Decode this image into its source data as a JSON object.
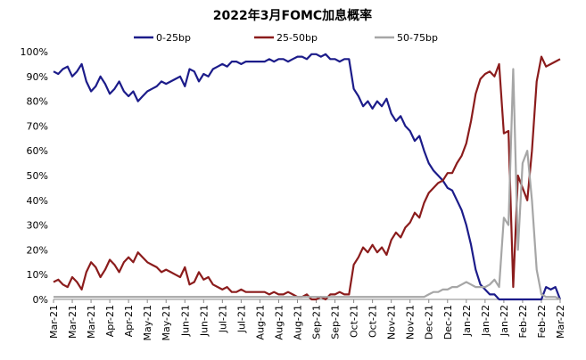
{
  "chart_data": {
    "type": "line",
    "title": "2022年3月FOMC加息概率",
    "categories": [
      "Mar-21",
      null,
      null,
      null,
      "Mar-21",
      null,
      null,
      null,
      "Mar-21",
      null,
      null,
      null,
      "Apr-21",
      null,
      null,
      null,
      "Apr-21",
      null,
      null,
      null,
      "May-21",
      null,
      null,
      null,
      "May-21",
      null,
      null,
      null,
      "Jun-21",
      null,
      null,
      null,
      "Jun-21",
      null,
      null,
      null,
      "Jul-21",
      null,
      null,
      null,
      "Jul-21",
      null,
      null,
      null,
      "Aug-21",
      null,
      null,
      null,
      "Aug-21",
      null,
      null,
      null,
      "Aug-21",
      null,
      null,
      null,
      "Sep-21",
      null,
      null,
      null,
      "Sep-21",
      null,
      null,
      null,
      "Oct-21",
      null,
      null,
      null,
      "Oct-21",
      null,
      null,
      null,
      "Nov-21",
      null,
      null,
      null,
      "Nov-21",
      null,
      null,
      null,
      "Dec-21",
      null,
      null,
      null,
      "Dec-21",
      null,
      null,
      null,
      "Jan-22",
      null,
      null,
      null,
      "Jan-22",
      null,
      null,
      null,
      "Jan-22",
      null,
      null,
      null,
      "Feb-22",
      null,
      null,
      null,
      "Feb-22",
      null,
      null,
      null,
      "Mar-22"
    ],
    "series": [
      {
        "name": "0-25bp",
        "color": "#1c1c8a",
        "values": [
          92,
          91,
          93,
          94,
          90,
          92,
          95,
          88,
          84,
          86,
          90,
          87,
          83,
          85,
          88,
          84,
          82,
          84,
          80,
          82,
          84,
          85,
          86,
          88,
          87,
          88,
          89,
          90,
          86,
          93,
          92,
          88,
          91,
          90,
          93,
          94,
          95,
          94,
          96,
          96,
          95,
          96,
          96,
          96,
          96,
          96,
          97,
          96,
          97,
          97,
          96,
          97,
          98,
          98,
          97,
          99,
          99,
          98,
          99,
          97,
          97,
          96,
          97,
          97,
          85,
          82,
          78,
          80,
          77,
          80,
          78,
          81,
          75,
          72,
          74,
          70,
          68,
          64,
          66,
          60,
          55,
          52,
          50,
          48,
          45,
          44,
          40,
          36,
          30,
          22,
          12,
          6,
          4,
          2,
          2,
          0,
          0,
          0,
          0,
          0,
          0,
          0,
          0,
          0,
          0,
          5,
          4,
          5,
          0
        ]
      },
      {
        "name": "25-50bp",
        "color": "#8b1c1c",
        "values": [
          7,
          8,
          6,
          5,
          9,
          7,
          4,
          11,
          15,
          13,
          9,
          12,
          16,
          14,
          11,
          15,
          17,
          15,
          19,
          17,
          15,
          14,
          13,
          11,
          12,
          11,
          10,
          9,
          13,
          6,
          7,
          11,
          8,
          9,
          6,
          5,
          4,
          5,
          3,
          3,
          4,
          3,
          3,
          3,
          3,
          3,
          2,
          3,
          2,
          2,
          3,
          2,
          1,
          1,
          2,
          0,
          0,
          1,
          0,
          2,
          2,
          3,
          2,
          2,
          14,
          17,
          21,
          19,
          22,
          19,
          21,
          18,
          24,
          27,
          25,
          29,
          31,
          35,
          33,
          39,
          43,
          45,
          47,
          48,
          51,
          51,
          55,
          58,
          63,
          72,
          83,
          89,
          91,
          92,
          90,
          95,
          67,
          68,
          5,
          50,
          45,
          40,
          60,
          88,
          98,
          94,
          95,
          96,
          97
        ]
      },
      {
        "name": "50-75bp",
        "color": "#a6a6a6",
        "values": [
          1,
          1,
          1,
          1,
          1,
          1,
          1,
          1,
          1,
          1,
          1,
          1,
          1,
          1,
          1,
          1,
          1,
          1,
          1,
          1,
          1,
          1,
          1,
          1,
          1,
          1,
          1,
          1,
          1,
          1,
          1,
          1,
          1,
          1,
          1,
          1,
          1,
          1,
          1,
          1,
          1,
          1,
          1,
          1,
          1,
          1,
          1,
          1,
          1,
          1,
          1,
          1,
          1,
          1,
          1,
          1,
          1,
          1,
          1,
          1,
          1,
          1,
          1,
          1,
          1,
          1,
          1,
          1,
          1,
          1,
          1,
          1,
          1,
          1,
          1,
          1,
          1,
          1,
          1,
          1,
          2,
          3,
          3,
          4,
          4,
          5,
          5,
          6,
          7,
          6,
          5,
          5,
          5,
          6,
          8,
          5,
          33,
          30,
          93,
          20,
          55,
          60,
          40,
          12,
          2,
          1,
          1,
          1,
          0
        ]
      }
    ],
    "ylim": [
      0,
      100
    ],
    "yticks": [
      {
        "value": 0,
        "label": "0%"
      },
      {
        "value": 10,
        "label": "10%"
      },
      {
        "value": 20,
        "label": "20%"
      },
      {
        "value": 30,
        "label": "30%"
      },
      {
        "value": 40,
        "label": "40%"
      },
      {
        "value": 50,
        "label": "50%"
      },
      {
        "value": 60,
        "label": "60%"
      },
      {
        "value": 70,
        "label": "70%"
      },
      {
        "value": 80,
        "label": "80%"
      },
      {
        "value": 90,
        "label": "90%"
      },
      {
        "value": 100,
        "label": "100%"
      }
    ],
    "grid": false,
    "legend": "top"
  }
}
